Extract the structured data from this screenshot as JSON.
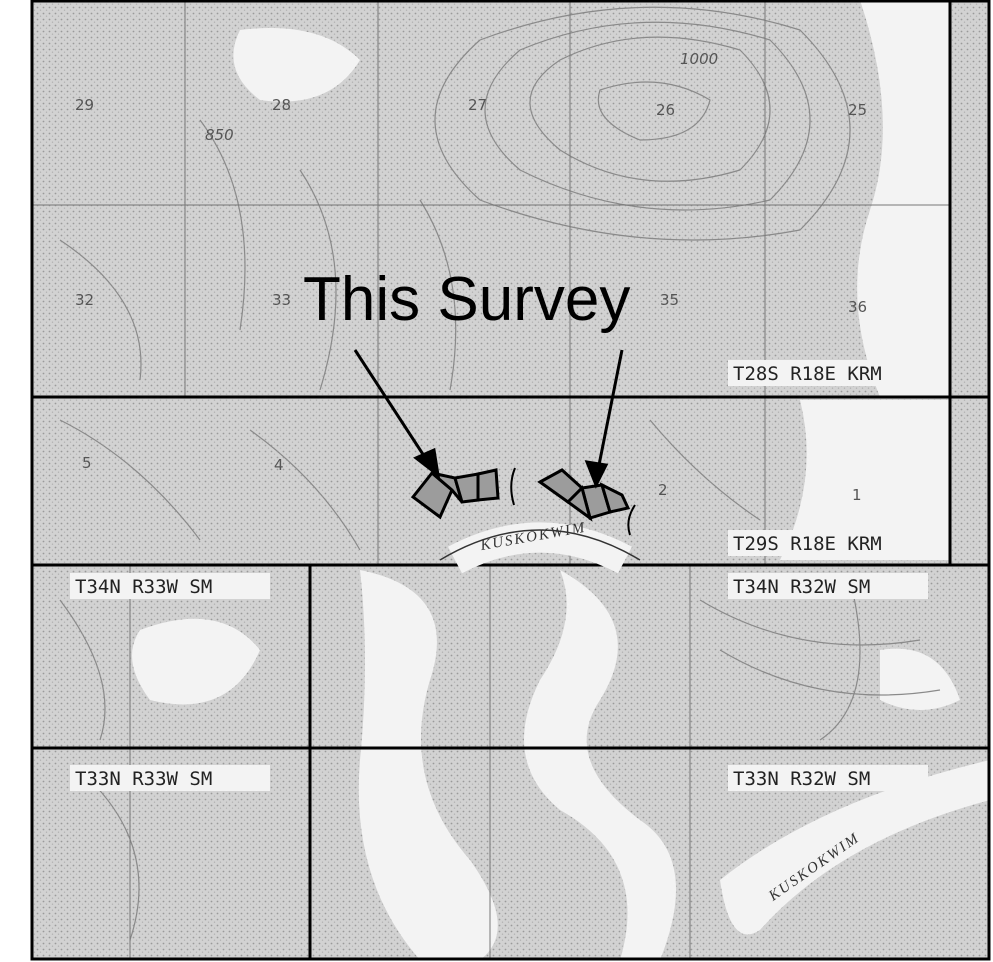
{
  "title": "This Survey",
  "townships": [
    "T28S R18E KRM",
    "T29S R18E KRM",
    "T34N R33W SM",
    "T34N R32W SM",
    "T33N R33W SM",
    "T33N R32W SM"
  ],
  "sections": [
    "29",
    "28",
    "27",
    "26",
    "25",
    "32",
    "33",
    "35",
    "36",
    "5",
    "4",
    "2",
    "1"
  ],
  "river_labels": [
    "KUSKOKWIM",
    "KUSKOKWIM"
  ],
  "contour_labels": [
    "1000",
    "850"
  ]
}
